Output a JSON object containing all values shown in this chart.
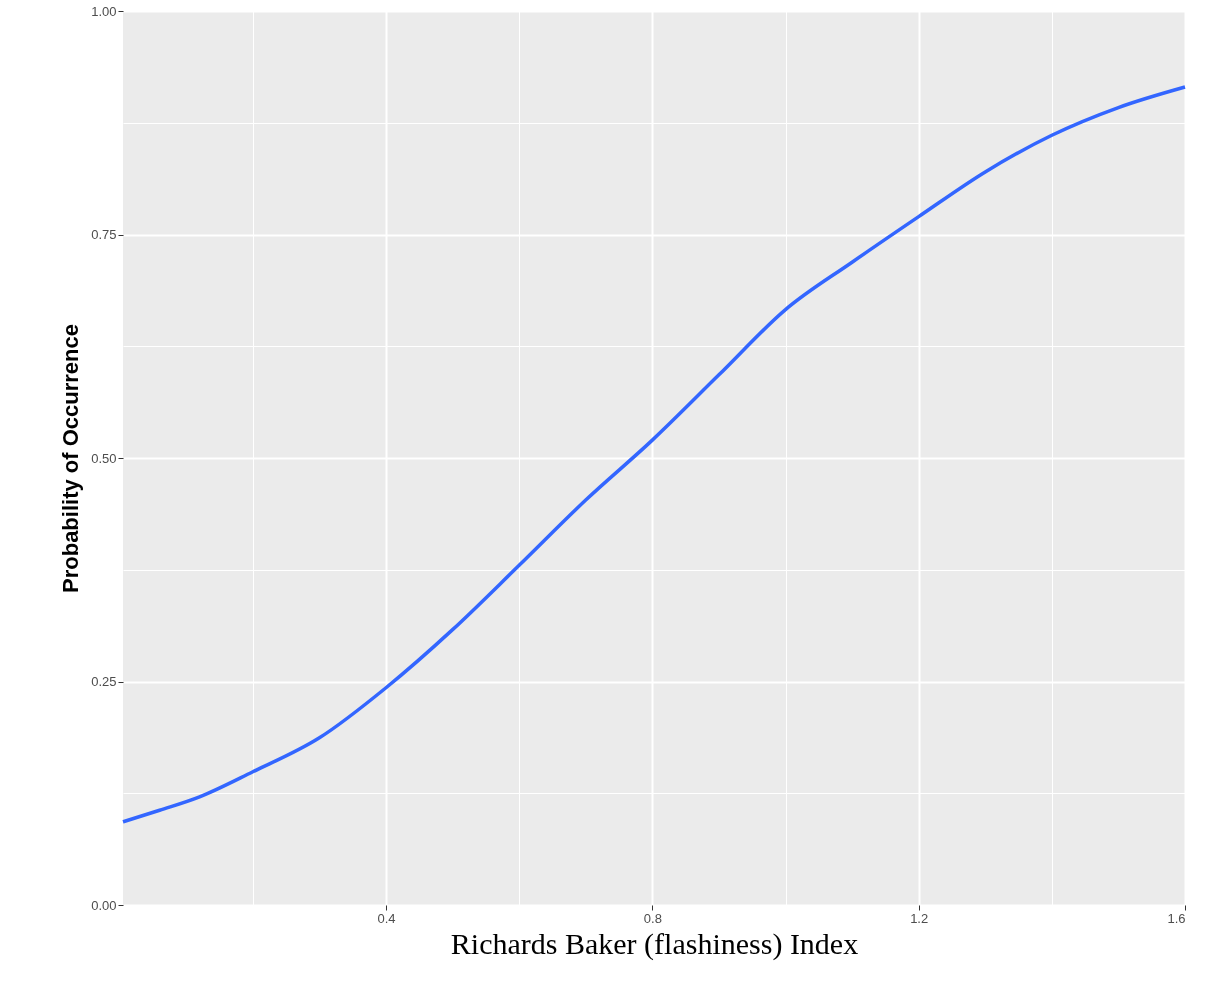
{
  "chart_data": {
    "type": "line",
    "xlabel": "Richards Baker (flashiness) Index",
    "ylabel": "Probability of Occurrence",
    "x": [
      0.005,
      0.06,
      0.12,
      0.2,
      0.3,
      0.4,
      0.5,
      0.6,
      0.7,
      0.8,
      0.9,
      1.0,
      1.1,
      1.2,
      1.3,
      1.4,
      1.5,
      1.6
    ],
    "series": [
      {
        "color": "#3366ff",
        "values": [
          0.093,
          0.106,
          0.121,
          0.149,
          0.187,
          0.243,
          0.308,
          0.38,
          0.453,
          0.52,
          0.593,
          0.666,
          0.719,
          0.77,
          0.82,
          0.861,
          0.892,
          0.915
        ]
      }
    ],
    "xlim": [
      0.005,
      1.6
    ],
    "ylim": [
      0,
      1
    ],
    "xticks": [
      {
        "value": 0.2,
        "label": null
      },
      0.4,
      {
        "value": 0.6,
        "label": null
      },
      0.8,
      {
        "value": 1.0,
        "label": null
      },
      1.2,
      {
        "value": 1.4,
        "label": null
      },
      1.6
    ],
    "yticks": [
      {
        "value": 0,
        "label": "0.00"
      },
      {
        "value": 0.125,
        "label": null
      },
      {
        "value": 0.25,
        "label": "0.25"
      },
      {
        "value": 0.375,
        "label": null
      },
      {
        "value": 0.5,
        "label": "0.50"
      },
      {
        "value": 0.625,
        "label": null
      },
      {
        "value": 0.75,
        "label": "0.75"
      },
      {
        "value": 0.875,
        "label": null
      },
      {
        "value": 1,
        "label": "1.00"
      }
    ],
    "grid": true,
    "marker": "none",
    "line_style": "solid"
  }
}
